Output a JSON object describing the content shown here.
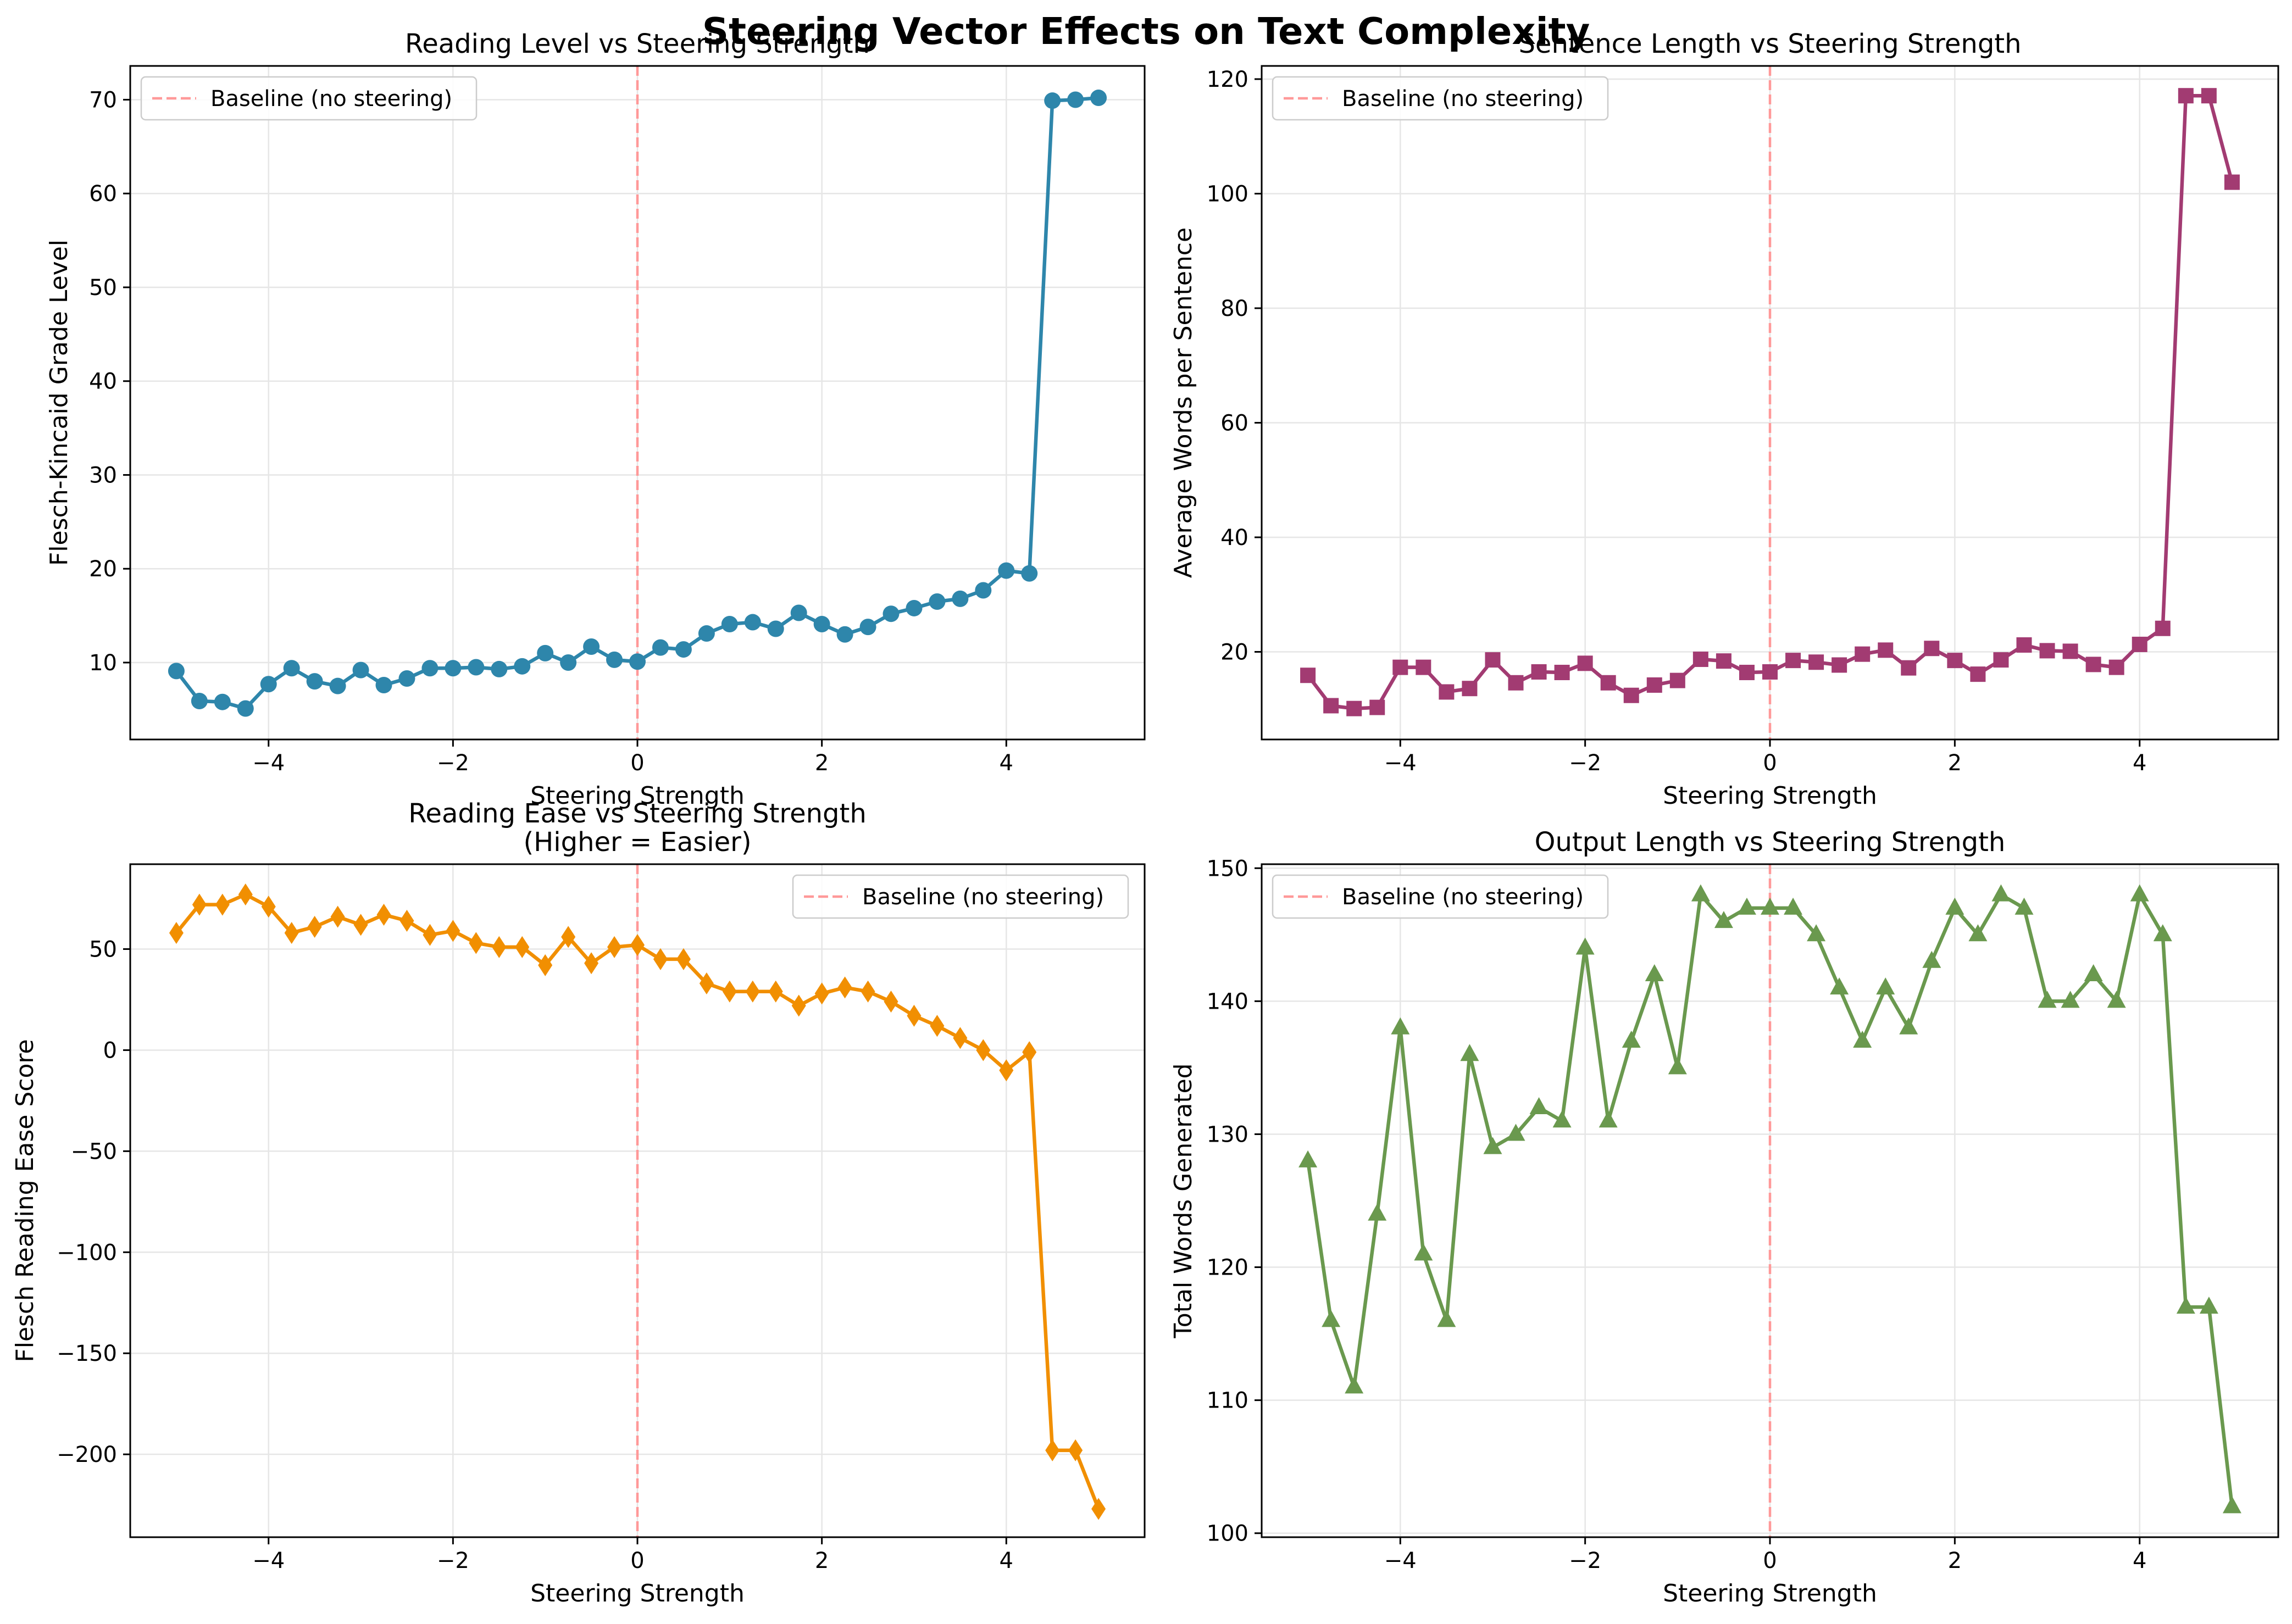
{
  "figure": {
    "suptitle": "Steering Vector Effects on Text Complexity"
  },
  "chart_data": [
    {
      "type": "line",
      "title": "Reading Level vs Steering Strength",
      "xlabel": "Steering Strength",
      "ylabel": "Flesch-Kincaid Grade Level",
      "xlim": [
        -5.5,
        5.5
      ],
      "ylim": [
        1.8,
        73.6
      ],
      "xticks": [
        -4,
        -2,
        0,
        2,
        4
      ],
      "yticks": [
        10,
        20,
        30,
        40,
        50,
        60,
        70
      ],
      "grid": true,
      "legend_position": "upper left",
      "baseline": {
        "x": 0,
        "label": "Baseline (no steering)",
        "color": "#ff9999"
      },
      "series": [
        {
          "color": "#2e86ab",
          "marker": "circle",
          "x": [
            -5,
            -4.75,
            -4.5,
            -4.25,
            -4,
            -3.75,
            -3.5,
            -3.25,
            -3,
            -2.75,
            -2.5,
            -2.25,
            -2,
            -1.75,
            -1.5,
            -1.25,
            -1,
            -0.75,
            -0.5,
            -0.25,
            0,
            0.25,
            0.5,
            0.75,
            1,
            1.25,
            1.5,
            1.75,
            2,
            2.25,
            2.5,
            2.75,
            3,
            3.25,
            3.5,
            3.75,
            4,
            4.25,
            4.5,
            4.75,
            5
          ],
          "y": [
            9.1,
            5.9,
            5.8,
            5.1,
            7.7,
            9.4,
            8.0,
            7.5,
            9.2,
            7.6,
            8.3,
            9.4,
            9.4,
            9.5,
            9.3,
            9.6,
            11.0,
            10.0,
            11.7,
            10.3,
            10.1,
            11.6,
            11.4,
            13.1,
            14.1,
            14.3,
            13.6,
            15.3,
            14.1,
            13.0,
            13.8,
            15.2,
            15.8,
            16.5,
            16.8,
            17.7,
            19.8,
            19.5,
            69.9,
            70.0,
            70.2
          ]
        }
      ]
    },
    {
      "type": "line",
      "title": "Sentence Length vs Steering Strength",
      "xlabel": "Steering Strength",
      "ylabel": "Average Words per Sentence",
      "xlim": [
        -5.5,
        5.5
      ],
      "ylim": [
        4.7,
        122.3
      ],
      "xticks": [
        -4,
        -2,
        0,
        2,
        4
      ],
      "yticks": [
        20,
        40,
        60,
        80,
        100,
        120
      ],
      "grid": true,
      "legend_position": "upper left",
      "baseline": {
        "x": 0,
        "label": "Baseline (no steering)",
        "color": "#ff9999"
      },
      "series": [
        {
          "color": "#a23b72",
          "marker": "square",
          "x": [
            -5,
            -4.75,
            -4.5,
            -4.25,
            -4,
            -3.75,
            -3.5,
            -3.25,
            -3,
            -2.75,
            -2.5,
            -2.25,
            -2,
            -1.75,
            -1.5,
            -1.25,
            -1,
            -0.75,
            -0.5,
            -0.25,
            0,
            0.25,
            0.5,
            0.75,
            1,
            1.25,
            1.5,
            1.75,
            2,
            2.25,
            2.5,
            2.75,
            3,
            3.25,
            3.5,
            3.75,
            4,
            4.25,
            4.5,
            4.75,
            5
          ],
          "y": [
            15.9,
            10.6,
            10.1,
            10.3,
            17.3,
            17.3,
            13.0,
            13.6,
            18.6,
            14.6,
            16.5,
            16.4,
            18.0,
            14.6,
            12.4,
            14.2,
            15.0,
            18.7,
            18.4,
            16.4,
            16.5,
            18.5,
            18.2,
            17.7,
            19.6,
            20.3,
            17.2,
            20.6,
            18.5,
            16.1,
            18.6,
            21.2,
            20.2,
            20.1,
            17.8,
            17.3,
            21.3,
            24.1,
            117.1,
            117.1,
            102.0
          ]
        }
      ]
    },
    {
      "type": "line",
      "title": "Reading Ease vs Steering Strength\n(Higher = Easier)",
      "xlabel": "Steering Strength",
      "ylabel": "Flesch Reading Ease Score",
      "xlim": [
        -5.5,
        5.5
      ],
      "ylim": [
        -241,
        92
      ],
      "xticks": [
        -4,
        -2,
        0,
        2,
        4
      ],
      "yticks": [
        -200,
        -150,
        -100,
        -50,
        0,
        50
      ],
      "grid": true,
      "legend_position": "upper right",
      "baseline": {
        "x": 0,
        "label": "Baseline (no steering)",
        "color": "#ff9999"
      },
      "series": [
        {
          "color": "#f18f01",
          "marker": "diamond",
          "x": [
            -5,
            -4.75,
            -4.5,
            -4.25,
            -4,
            -3.75,
            -3.5,
            -3.25,
            -3,
            -2.75,
            -2.5,
            -2.25,
            -2,
            -1.75,
            -1.5,
            -1.25,
            -1,
            -0.75,
            -0.5,
            -0.25,
            0,
            0.25,
            0.5,
            0.75,
            1,
            1.25,
            1.5,
            1.75,
            2,
            2.25,
            2.5,
            2.75,
            3,
            3.25,
            3.5,
            3.75,
            4,
            4.25,
            4.5,
            4.75,
            5
          ],
          "y": [
            58,
            72,
            72,
            77,
            71,
            58,
            61,
            66,
            62,
            67,
            64,
            57,
            59,
            53,
            51,
            51,
            42,
            56,
            43,
            51,
            52,
            45,
            45,
            33,
            29,
            29,
            29,
            22,
            28,
            31,
            29,
            24,
            17,
            12,
            6,
            0,
            -10,
            -1,
            -198,
            -198,
            -227
          ]
        }
      ]
    },
    {
      "type": "line",
      "title": "Output Length vs Steering Strength",
      "xlabel": "Steering Strength",
      "ylabel": "Total Words Generated",
      "xlim": [
        -5.5,
        5.5
      ],
      "ylim": [
        99.7,
        150.3
      ],
      "xticks": [
        -4,
        -2,
        0,
        2,
        4
      ],
      "yticks": [
        100,
        110,
        120,
        130,
        140,
        150
      ],
      "grid": true,
      "legend_position": "upper left",
      "baseline": {
        "x": 0,
        "label": "Baseline (no steering)",
        "color": "#ff9999"
      },
      "series": [
        {
          "color": "#6a994e",
          "marker": "triangle",
          "x": [
            -5,
            -4.75,
            -4.5,
            -4.25,
            -4,
            -3.75,
            -3.5,
            -3.25,
            -3,
            -2.75,
            -2.5,
            -2.25,
            -2,
            -1.75,
            -1.5,
            -1.25,
            -1,
            -0.75,
            -0.5,
            -0.25,
            0,
            0.25,
            0.5,
            0.75,
            1,
            1.25,
            1.5,
            1.75,
            2,
            2.25,
            2.5,
            2.75,
            3,
            3.25,
            3.5,
            3.75,
            4,
            4.25,
            4.5,
            4.75,
            5
          ],
          "y": [
            128,
            116,
            111,
            124,
            138,
            121,
            116,
            136,
            129,
            130,
            132,
            131,
            144,
            131,
            137,
            142,
            135,
            148,
            146,
            147,
            147,
            147,
            145,
            141,
            137,
            141,
            138,
            143,
            147,
            145,
            148,
            147,
            140,
            140,
            142,
            140,
            148,
            145,
            117,
            117,
            102
          ]
        }
      ]
    }
  ]
}
